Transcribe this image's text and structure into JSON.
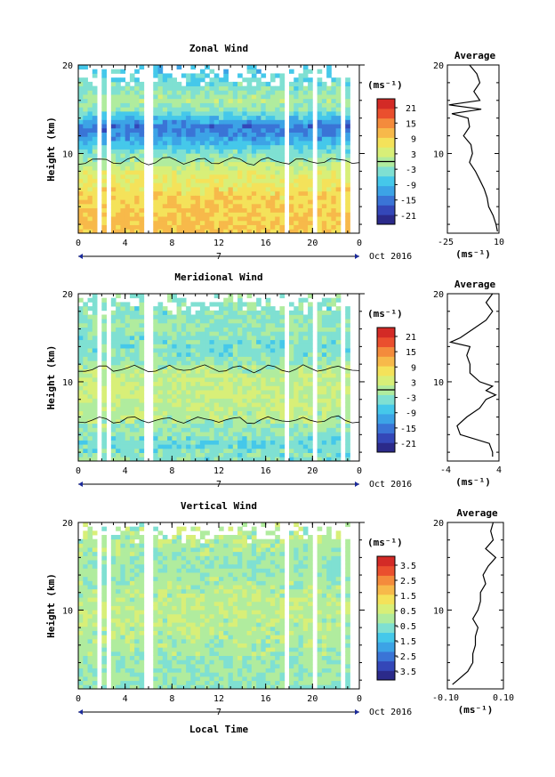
{
  "common": {
    "ylabel": "Height (km)",
    "xlabel": "Local Time",
    "date_label": "Oct 2016",
    "day_label": "7",
    "cbar_unit": "(ms⁻¹)",
    "avg_title": "Average",
    "avg_unit": "(ms⁻¹)",
    "x_ticks": [
      "0",
      "4",
      "8",
      "12",
      "16",
      "20",
      "0"
    ],
    "y_ticks": [
      "20",
      "10"
    ]
  },
  "chart_data": [
    {
      "type": "heatmap",
      "title": "Zonal Wind",
      "x": {
        "label": "Local Time",
        "range": [
          0,
          24
        ],
        "ticks": [
          0,
          4,
          8,
          12,
          16,
          20,
          24
        ]
      },
      "y": {
        "label": "Height (km)",
        "range": [
          1,
          20
        ],
        "ticks": [
          10,
          20
        ]
      },
      "colorbar": {
        "unit": "(ms⁻¹)",
        "range": [
          -24,
          24
        ],
        "ticks": [
          "21",
          "15",
          "9",
          "3",
          "-3",
          "-9",
          "-15",
          "-21"
        ],
        "zero_line": true
      },
      "profile_key": [
        [
          2,
          10
        ],
        [
          4,
          9
        ],
        [
          6,
          7
        ],
        [
          8,
          4
        ],
        [
          10,
          -3
        ],
        [
          12,
          -12
        ],
        [
          13,
          -15
        ],
        [
          14,
          -8
        ],
        [
          15,
          -2
        ],
        [
          16,
          0
        ],
        [
          18,
          -4
        ],
        [
          20,
          -8
        ]
      ],
      "average_profile": {
        "title": "Average",
        "x_unit": "(ms⁻¹)",
        "xlim": [
          -25,
          10
        ],
        "x_ticks": [
          "-25",
          "10"
        ],
        "y_ticks": [
          "20",
          "10"
        ],
        "height": [
          1.2,
          2,
          3,
          4,
          5,
          6,
          7,
          8,
          9,
          10,
          11,
          12,
          13,
          14,
          14.5,
          15,
          15.5,
          16,
          17,
          18,
          19,
          20
        ],
        "value": [
          9,
          8,
          6,
          3,
          2,
          0,
          -3,
          -6,
          -10,
          -8,
          -9,
          -14,
          -10,
          -11,
          -22,
          -2,
          -24,
          -3,
          -7,
          -3,
          -5,
          -10
        ]
      }
    },
    {
      "type": "heatmap",
      "title": "Meridional Wind",
      "x": {
        "label": "Local Time",
        "range": [
          0,
          24
        ],
        "ticks": [
          0,
          4,
          8,
          12,
          16,
          20,
          24
        ]
      },
      "y": {
        "label": "Height (km)",
        "range": [
          1,
          20
        ],
        "ticks": [
          10,
          20
        ]
      },
      "colorbar": {
        "unit": "(ms⁻¹)",
        "range": [
          -24,
          24
        ],
        "ticks": [
          "21",
          "15",
          "9",
          "3",
          "-3",
          "-9",
          "-15",
          "-21"
        ],
        "zero_line": true
      },
      "profile_key": [
        [
          2,
          -3
        ],
        [
          3,
          -5
        ],
        [
          4,
          -2
        ],
        [
          5,
          -1
        ],
        [
          6,
          0.5
        ],
        [
          7,
          1
        ],
        [
          8,
          2
        ],
        [
          9,
          2.5
        ],
        [
          10,
          2
        ],
        [
          11,
          1
        ],
        [
          12,
          -1
        ],
        [
          13,
          -3
        ],
        [
          14,
          -4
        ],
        [
          15,
          -3
        ],
        [
          16,
          -1
        ],
        [
          18,
          -3
        ],
        [
          20,
          -2
        ]
      ],
      "average_profile": {
        "title": "Average",
        "x_unit": "(ms⁻¹)",
        "xlim": [
          -4,
          4
        ],
        "x_ticks": [
          "-4",
          "4"
        ],
        "y_ticks": [
          "20",
          "10"
        ],
        "height": [
          1.5,
          2,
          3,
          4,
          5,
          6,
          7,
          8,
          8.5,
          9,
          9.5,
          10,
          11,
          12,
          13,
          14,
          14.5,
          15,
          16,
          17,
          18,
          19,
          20
        ],
        "value": [
          3,
          3,
          2.5,
          -2,
          -2.5,
          -1,
          1,
          2,
          3.5,
          2,
          3,
          1,
          -0.5,
          -0.5,
          -1,
          -0.5,
          -3.5,
          -2,
          0,
          2,
          3,
          2,
          3
        ]
      }
    },
    {
      "type": "heatmap",
      "title": "Vertical Wind",
      "x": {
        "label": "Local Time",
        "range": [
          0,
          24
        ],
        "ticks": [
          0,
          4,
          8,
          12,
          16,
          20,
          24
        ]
      },
      "y": {
        "label": "Height (km)",
        "range": [
          1,
          20
        ],
        "ticks": [
          10,
          20
        ]
      },
      "colorbar": {
        "unit": "(ms⁻¹)",
        "range": [
          -4,
          4
        ],
        "ticks": [
          "3.5",
          "2.5",
          "1.5",
          "0.5",
          "-0.5",
          "-1.5",
          "-2.5",
          "-3.5"
        ],
        "zero_line": false
      },
      "profile_key": [
        [
          2,
          -0.3
        ],
        [
          5,
          -0.1
        ],
        [
          8,
          0.1
        ],
        [
          10,
          0.2
        ],
        [
          12,
          0.1
        ],
        [
          15,
          -0.3
        ],
        [
          18,
          0.1
        ],
        [
          20,
          0
        ]
      ],
      "average_profile": {
        "title": "Average",
        "x_unit": "(ms⁻¹)",
        "xlim": [
          -0.12,
          0.1
        ],
        "x_ticks": [
          "-0.10",
          "0.10"
        ],
        "y_ticks": [
          "20",
          "10"
        ],
        "height": [
          1.5,
          2,
          3,
          4,
          5,
          6,
          7,
          8,
          9,
          10,
          11,
          12,
          13,
          14,
          15,
          16,
          17,
          18,
          19,
          20
        ],
        "value": [
          -0.1,
          -0.08,
          -0.04,
          -0.02,
          -0.02,
          -0.01,
          -0.01,
          0.0,
          -0.02,
          0.0,
          0.01,
          0.01,
          0.03,
          0.02,
          0.04,
          0.07,
          0.03,
          0.06,
          0.05,
          0.06
        ]
      }
    }
  ]
}
